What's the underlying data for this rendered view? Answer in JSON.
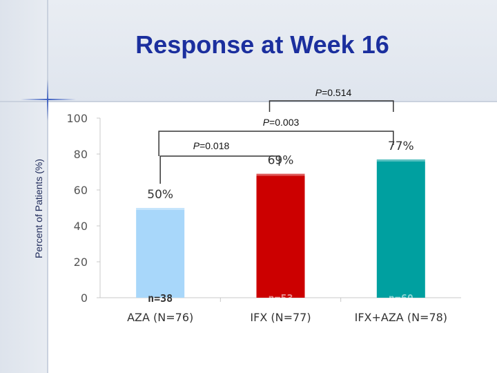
{
  "slide": {
    "title": "Response at Week 16"
  },
  "chart_data": {
    "type": "bar",
    "title": "",
    "ylabel": "Percent of Patients (%)",
    "xlabel": "",
    "ylim": [
      0,
      100
    ],
    "yticks": [
      0,
      20,
      40,
      60,
      80,
      100
    ],
    "grid": false,
    "categories": [
      "AZA (N=76)",
      "IFX (N=77)",
      "IFX+AZA (N=78)"
    ],
    "values": [
      50,
      69,
      77
    ],
    "data_labels": [
      "50%",
      "69%",
      "77%"
    ],
    "n_labels": [
      "n=38",
      "n=53",
      "n=60"
    ],
    "colors": [
      "#a8d7fa",
      "#cc0000",
      "#00a0a0"
    ],
    "comparisons": [
      {
        "label_prefix": "P",
        "label_value": "=0.018",
        "from": 0,
        "to": 1
      },
      {
        "label_prefix": "P",
        "label_value": "=0.003",
        "from": 0,
        "to": 2
      },
      {
        "label_prefix": "P",
        "label_value": "=0.514",
        "from": 1,
        "to": 2
      }
    ]
  }
}
